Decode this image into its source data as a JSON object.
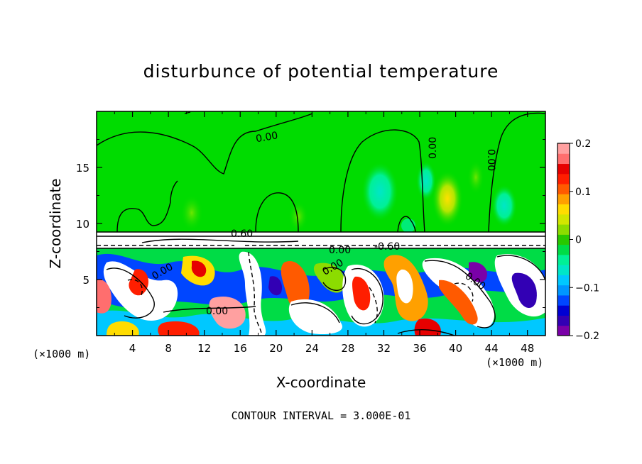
{
  "chart_data": {
    "type": "heatmap",
    "title": "disturbunce of potential temperature",
    "xlabel": "X-coordinate",
    "ylabel": "Z-coordinate",
    "x_unit_left": "(×1000 m)",
    "x_unit_right": "(×1000 m)",
    "footer": "CONTOUR INTERVAL = 3.000E-01",
    "xlim": [
      0,
      50
    ],
    "ylim": [
      0,
      20
    ],
    "x_ticks": [
      4,
      8,
      12,
      16,
      20,
      24,
      28,
      32,
      36,
      40,
      44,
      48
    ],
    "y_ticks": [
      5,
      10,
      15
    ],
    "colorbar": {
      "range": [
        -0.2,
        0.2
      ],
      "tick_labels": [
        "0.2",
        "0.1",
        "0",
        "−0.1",
        "−0.2"
      ],
      "tick_values": [
        0.2,
        0.1,
        0,
        -0.1,
        -0.2
      ],
      "colors": [
        "#7a00a8",
        "#3200b4",
        "#0000d2",
        "#0046ff",
        "#0096ff",
        "#00c8ff",
        "#00e6c8",
        "#00f096",
        "#00dc46",
        "#28c800",
        "#8cdc00",
        "#d2e600",
        "#ffdc00",
        "#ffa000",
        "#ff5a00",
        "#ff1e00",
        "#e60000",
        "#ff6e6e",
        "#ffa0a0"
      ]
    },
    "contour_labels": [
      "0.00",
      "0.00",
      "0.00",
      "0.00",
      "0.00",
      "0.00",
      "0.00",
      "0.00",
      "0.60",
      "-0.60"
    ],
    "grid": false,
    "legend": "colorbar-right"
  }
}
